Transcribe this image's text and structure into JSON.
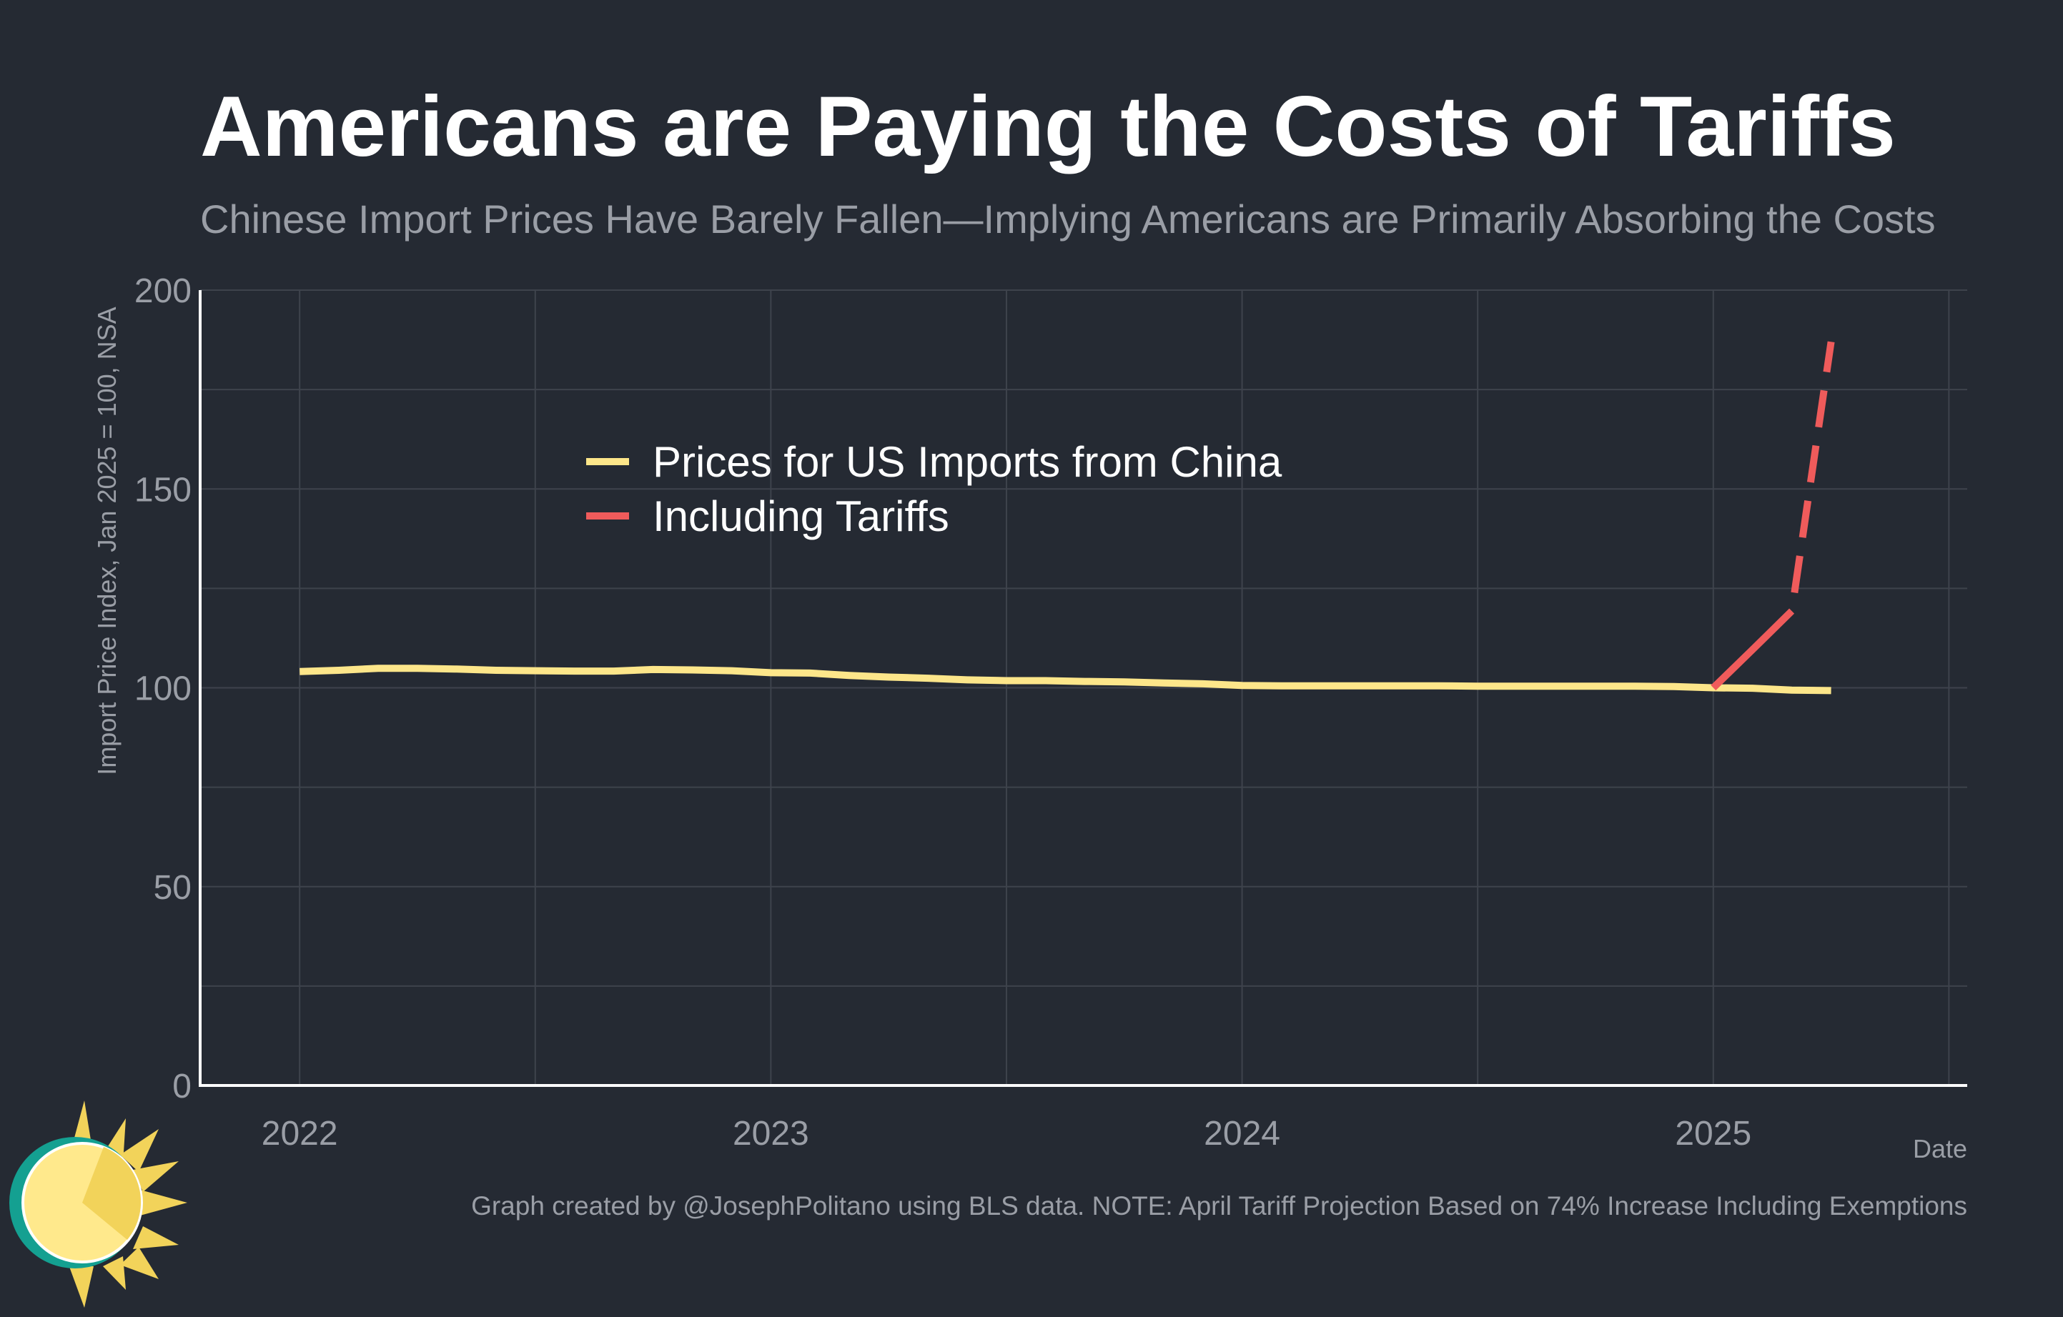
{
  "chart_data": {
    "type": "line",
    "title": "Americans are Paying the Costs of Tariffs",
    "subtitle": "Chinese Import Prices Have Barely Fallen—Implying Americans are Primarily Absorbing the Costs",
    "xlabel": "Date",
    "ylabel": "Import Price Index, Jan 2025 = 100, NSA",
    "xlim": [
      "2021-10-15",
      "2025-07-15"
    ],
    "ylim": [
      0,
      200
    ],
    "x_ticks": [
      "2022",
      "2023",
      "2024",
      "2025"
    ],
    "y_ticks": [
      0,
      50,
      100,
      150,
      200
    ],
    "grid": true,
    "legend_position": "upper-left",
    "caption": "Graph created by @JosephPolitano using BLS data. NOTE: April Tariff Projection Based on 74% Increase Including Exemptions",
    "series": [
      {
        "name": "Prices for US Imports from China",
        "color": "#fde68a",
        "style": "solid",
        "x": [
          "2022-01",
          "2022-02",
          "2022-03",
          "2022-04",
          "2022-05",
          "2022-06",
          "2022-07",
          "2022-08",
          "2022-09",
          "2022-10",
          "2022-11",
          "2022-12",
          "2023-01",
          "2023-02",
          "2023-03",
          "2023-04",
          "2023-05",
          "2023-06",
          "2023-07",
          "2023-08",
          "2023-09",
          "2023-10",
          "2023-11",
          "2023-12",
          "2024-01",
          "2024-02",
          "2024-03",
          "2024-04",
          "2024-05",
          "2024-06",
          "2024-07",
          "2024-08",
          "2024-09",
          "2024-10",
          "2024-11",
          "2024-12",
          "2025-01",
          "2025-02",
          "2025-03",
          "2025-04"
        ],
        "y": [
          104.1,
          104.4,
          104.9,
          104.9,
          104.7,
          104.4,
          104.3,
          104.2,
          104.2,
          104.6,
          104.5,
          104.3,
          103.8,
          103.7,
          103.1,
          102.7,
          102.4,
          102.0,
          101.8,
          101.8,
          101.6,
          101.5,
          101.2,
          101.0,
          100.6,
          100.5,
          100.5,
          100.5,
          100.5,
          100.5,
          100.4,
          100.4,
          100.4,
          100.4,
          100.4,
          100.3,
          100.0,
          99.9,
          99.4,
          99.3
        ]
      },
      {
        "name": "Including Tariffs",
        "color": "#ef5b5b",
        "style": "solid then dashed",
        "x": [
          "2025-01",
          "2025-02",
          "2025-03",
          "2025-04"
        ],
        "y": [
          100.0,
          109.6,
          119.3,
          187.0
        ]
      }
    ]
  }
}
